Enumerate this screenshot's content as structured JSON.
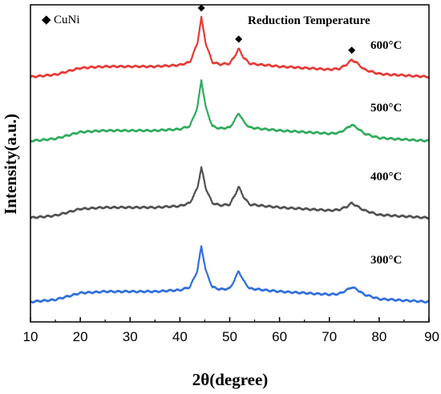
{
  "chart_data": {
    "type": "line",
    "xlabel": "2θ(degree)",
    "ylabel": "Intensity(a.u.)",
    "xlim": [
      10,
      90
    ],
    "x_ticks": [
      "10",
      "20",
      "30",
      "40",
      "50",
      "60",
      "70",
      "80",
      "90"
    ],
    "y_ticks": "none",
    "grid": false,
    "legend": {
      "placement": "top-left",
      "marker": "◆",
      "entry": "CuNi"
    },
    "legend_title": "Reduction Temperature",
    "peak_positions": [
      44.3,
      51.8,
      74.5
    ],
    "series": [
      {
        "name": "600°C",
        "color": "#e53935",
        "points": [
          [
            10,
            0.1
          ],
          [
            15,
            0.13
          ],
          [
            20,
            0.22
          ],
          [
            25,
            0.24
          ],
          [
            30,
            0.24
          ],
          [
            35,
            0.24
          ],
          [
            40,
            0.26
          ],
          [
            42,
            0.3
          ],
          [
            43.5,
            0.55
          ],
          [
            44.3,
            0.9
          ],
          [
            45.2,
            0.55
          ],
          [
            46.5,
            0.3
          ],
          [
            48,
            0.27
          ],
          [
            50,
            0.28
          ],
          [
            51,
            0.38
          ],
          [
            51.8,
            0.48
          ],
          [
            52.8,
            0.36
          ],
          [
            54,
            0.28
          ],
          [
            60,
            0.24
          ],
          [
            70,
            0.2
          ],
          [
            72,
            0.21
          ],
          [
            73.5,
            0.27
          ],
          [
            74.5,
            0.33
          ],
          [
            75.5,
            0.29
          ],
          [
            77,
            0.2
          ],
          [
            80,
            0.14
          ],
          [
            85,
            0.12
          ],
          [
            90,
            0.1
          ]
        ]
      },
      {
        "name": "500°C",
        "color": "#2eab5c",
        "points": [
          [
            10,
            0.1
          ],
          [
            15,
            0.13
          ],
          [
            20,
            0.22
          ],
          [
            25,
            0.24
          ],
          [
            30,
            0.24
          ],
          [
            35,
            0.24
          ],
          [
            40,
            0.26
          ],
          [
            42,
            0.3
          ],
          [
            43.5,
            0.55
          ],
          [
            44.3,
            0.92
          ],
          [
            45.2,
            0.55
          ],
          [
            46.5,
            0.3
          ],
          [
            48,
            0.27
          ],
          [
            50,
            0.28
          ],
          [
            51,
            0.38
          ],
          [
            51.8,
            0.48
          ],
          [
            52.8,
            0.36
          ],
          [
            54,
            0.28
          ],
          [
            60,
            0.24
          ],
          [
            70,
            0.2
          ],
          [
            72,
            0.21
          ],
          [
            73.5,
            0.27
          ],
          [
            74.5,
            0.32
          ],
          [
            75.5,
            0.28
          ],
          [
            77,
            0.2
          ],
          [
            80,
            0.14
          ],
          [
            85,
            0.12
          ],
          [
            90,
            0.1
          ]
        ]
      },
      {
        "name": "400°C",
        "color": "#505050",
        "points": [
          [
            10,
            0.1
          ],
          [
            15,
            0.13
          ],
          [
            20,
            0.22
          ],
          [
            25,
            0.24
          ],
          [
            30,
            0.24
          ],
          [
            35,
            0.24
          ],
          [
            40,
            0.26
          ],
          [
            42,
            0.3
          ],
          [
            43.5,
            0.5
          ],
          [
            44.3,
            0.78
          ],
          [
            45.2,
            0.5
          ],
          [
            46.5,
            0.3
          ],
          [
            48,
            0.27
          ],
          [
            50,
            0.28
          ],
          [
            51,
            0.4
          ],
          [
            51.8,
            0.52
          ],
          [
            52.8,
            0.38
          ],
          [
            54,
            0.28
          ],
          [
            60,
            0.24
          ],
          [
            70,
            0.2
          ],
          [
            72,
            0.21
          ],
          [
            73.5,
            0.25
          ],
          [
            74.5,
            0.3
          ],
          [
            75.5,
            0.26
          ],
          [
            77,
            0.2
          ],
          [
            80,
            0.14
          ],
          [
            85,
            0.12
          ],
          [
            90,
            0.1
          ]
        ]
      },
      {
        "name": "300°C",
        "color": "#2f6fdb",
        "points": [
          [
            10,
            0.1
          ],
          [
            15,
            0.13
          ],
          [
            20,
            0.22
          ],
          [
            25,
            0.24
          ],
          [
            30,
            0.24
          ],
          [
            35,
            0.24
          ],
          [
            40,
            0.26
          ],
          [
            42,
            0.3
          ],
          [
            43.5,
            0.52
          ],
          [
            44.3,
            0.85
          ],
          [
            45.2,
            0.52
          ],
          [
            46.5,
            0.3
          ],
          [
            48,
            0.27
          ],
          [
            50,
            0.28
          ],
          [
            51,
            0.4
          ],
          [
            51.8,
            0.52
          ],
          [
            52.8,
            0.38
          ],
          [
            54,
            0.28
          ],
          [
            60,
            0.24
          ],
          [
            70,
            0.2
          ],
          [
            72,
            0.21
          ],
          [
            73.5,
            0.26
          ],
          [
            74.5,
            0.3
          ],
          [
            75.5,
            0.27
          ],
          [
            77,
            0.2
          ],
          [
            80,
            0.14
          ],
          [
            85,
            0.12
          ],
          [
            90,
            0.1
          ]
        ]
      }
    ]
  }
}
